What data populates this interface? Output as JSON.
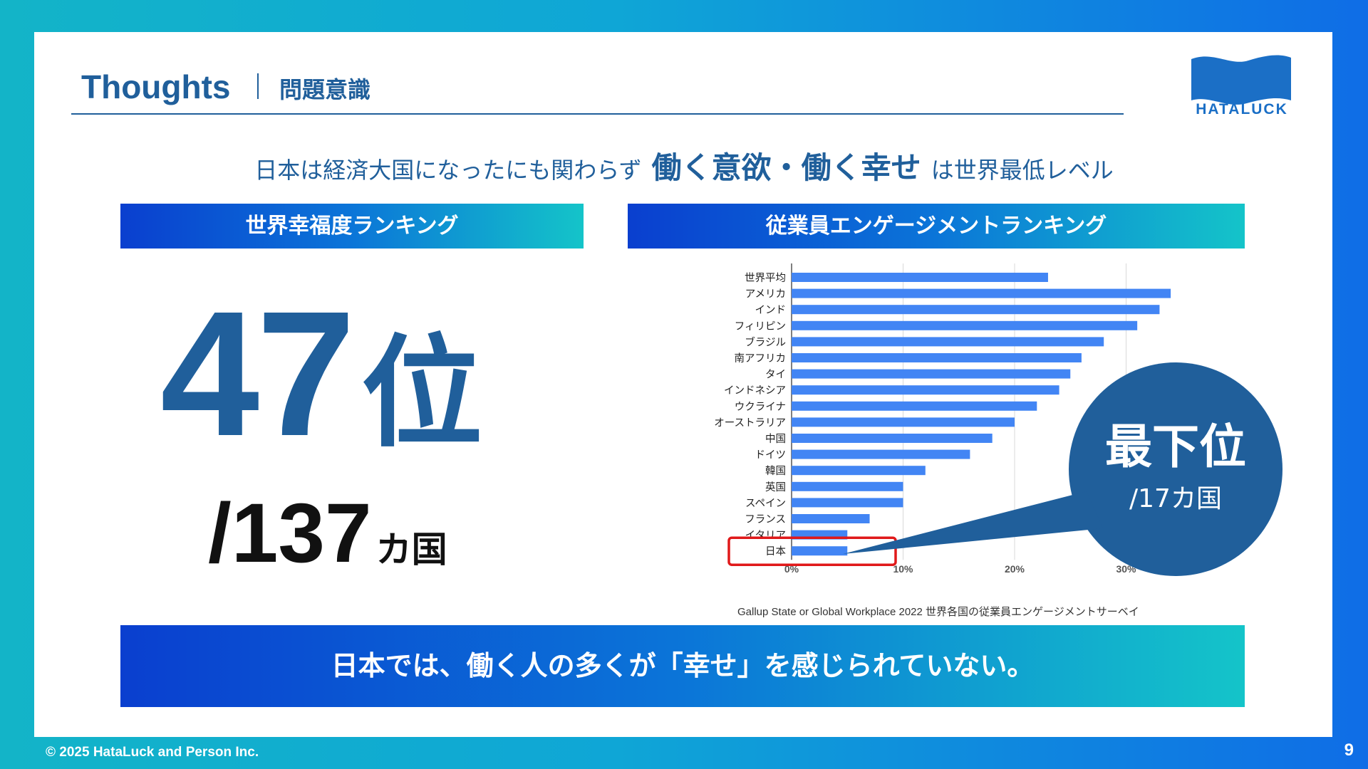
{
  "header": {
    "title": "Thoughts",
    "subtitle": "問題意識",
    "logo_text": "HATALUCK"
  },
  "headline": {
    "part1": "日本は経済大国になったにも関わらず",
    "emphasis": "働く意欲・働く幸せ",
    "part2": "は世界最低レベル"
  },
  "left_panel": {
    "ribbon": "世界幸福度ランキング",
    "rank": "47",
    "rank_unit": "位",
    "total": "/137",
    "total_unit": "カ国"
  },
  "right_panel": {
    "ribbon": "従業員エンゲージメントランキング",
    "callout_main": "最下位",
    "callout_sub": "/17カ国",
    "source": "Gallup State or Global Workplace 2022 世界各国の従業員エンゲージメントサーベイ"
  },
  "conclusion": "日本では、働く人の多くが「幸せ」を感じられていない。",
  "footer": {
    "copyright": "© 2025 HataLuck and Person Inc.",
    "page": "9"
  },
  "colors": {
    "brand_navy": "#205f9b",
    "bar": "#4285f4",
    "highlight": "#e0191a",
    "ribbon_start": "#0a3fcf",
    "ribbon_end": "#14c4c9"
  },
  "chart_data": {
    "type": "bar",
    "orientation": "horizontal",
    "categories": [
      "世界平均",
      "アメリカ",
      "インド",
      "フィリピン",
      "ブラジル",
      "南アフリカ",
      "タイ",
      "インドネシア",
      "ウクライナ",
      "オーストラリア",
      "中国",
      "ドイツ",
      "韓国",
      "英国",
      "スペイン",
      "フランス",
      "イタリア",
      "日本"
    ],
    "values": [
      23,
      34,
      33,
      31,
      28,
      26,
      25,
      24,
      22,
      20,
      18,
      16,
      12,
      10,
      10,
      7,
      5,
      5
    ],
    "x_ticks": [
      "0%",
      "10%",
      "20%",
      "30%"
    ],
    "xlim": [
      0,
      35
    ],
    "highlight_category": "日本",
    "grid": true
  }
}
